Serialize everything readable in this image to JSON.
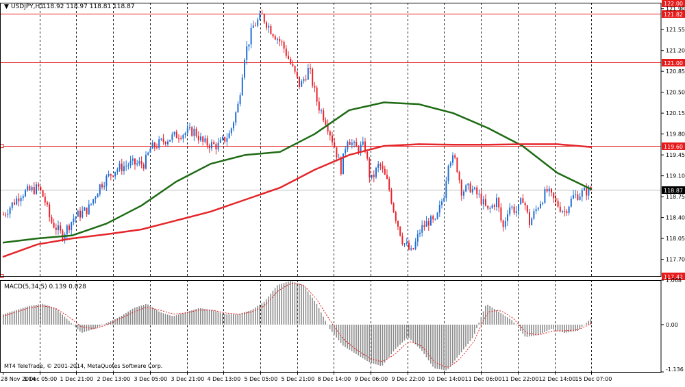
{
  "window": {
    "symbol_title": "USDJPY,H1",
    "ohlc_text": "118.92 118.97 118.81 118.87",
    "watermark": "MT4 TeleTrade, © 2001-2014, MetaQuotes Software Corp."
  },
  "colors": {
    "bull_candle": "#1f6fd6",
    "bear_candle": "#e8222b",
    "ma_fast": "#1e6b14",
    "ma_slow": "#e4262b",
    "level_line": "#e61c1c",
    "grid": "#222222",
    "macd_hist": "#8a8a8a",
    "macd_signal": "#e61c1c",
    "border": "#000000"
  },
  "chart_data": [
    {
      "type": "candlestick",
      "symbol": "USDJPY",
      "timeframe": "H1",
      "ylim": [
        117.42,
        122.0
      ],
      "yticks": [
        "121.90",
        "121.55",
        "121.20",
        "120.85",
        "120.50",
        "120.15",
        "119.80",
        "119.45",
        "119.10",
        "118.75",
        "118.40",
        "118.05",
        "117.70"
      ],
      "xticks": [
        "28 Nov 2014",
        "1 Dec 05:00",
        "1 Dec 21:00",
        "2 Dec 13:00",
        "3 Dec 05:00",
        "3 Dec 21:00",
        "4 Dec 13:00",
        "5 Dec 05:00",
        "5 Dec 21:00",
        "8 Dec 14:00",
        "9 Dec 06:00",
        "9 Dec 22:00",
        "10 Dec 14:00",
        "11 Dec 06:00",
        "11 Dec 22:00",
        "12 Dec 14:00",
        "15 Dec 07:00"
      ],
      "horizontal_levels": [
        {
          "price": 122.0,
          "label": "122.00"
        },
        {
          "price": 121.82,
          "label": "121.82"
        },
        {
          "price": 121.0,
          "label": "121.00"
        },
        {
          "price": 119.6,
          "label": "119.60"
        },
        {
          "price": 117.42,
          "label": "117.42"
        }
      ],
      "current_price": {
        "price": 118.87,
        "label": "118.87"
      },
      "close_path": [
        [
          0,
          118.45
        ],
        [
          0.03,
          118.8
        ],
        [
          0.06,
          118.9
        ],
        [
          0.07,
          118.7
        ],
        [
          0.08,
          118.35
        ],
        [
          0.1,
          118.1
        ],
        [
          0.12,
          118.4
        ],
        [
          0.145,
          118.55
        ],
        [
          0.165,
          118.95
        ],
        [
          0.19,
          119.2
        ],
        [
          0.215,
          119.3
        ],
        [
          0.24,
          119.3
        ],
        [
          0.25,
          119.55
        ],
        [
          0.275,
          119.7
        ],
        [
          0.3,
          119.8
        ],
        [
          0.325,
          119.85
        ],
        [
          0.34,
          119.65
        ],
        [
          0.365,
          119.6
        ],
        [
          0.385,
          119.8
        ],
        [
          0.4,
          120.3
        ],
        [
          0.41,
          121.1
        ],
        [
          0.425,
          121.6
        ],
        [
          0.44,
          121.78
        ],
        [
          0.455,
          121.55
        ],
        [
          0.475,
          121.3
        ],
        [
          0.49,
          120.95
        ],
        [
          0.505,
          120.6
        ],
        [
          0.52,
          120.9
        ],
        [
          0.535,
          120.3
        ],
        [
          0.55,
          120.0
        ],
        [
          0.565,
          119.55
        ],
        [
          0.575,
          119.2
        ],
        [
          0.585,
          119.75
        ],
        [
          0.6,
          119.55
        ],
        [
          0.615,
          119.6
        ],
        [
          0.625,
          119.0
        ],
        [
          0.64,
          119.3
        ],
        [
          0.655,
          118.95
        ],
        [
          0.665,
          118.5
        ],
        [
          0.68,
          118.0
        ],
        [
          0.695,
          117.8
        ],
        [
          0.71,
          118.2
        ],
        [
          0.725,
          118.35
        ],
        [
          0.735,
          118.3
        ],
        [
          0.75,
          118.8
        ],
        [
          0.758,
          119.4
        ],
        [
          0.77,
          119.35
        ],
        [
          0.78,
          118.85
        ],
        [
          0.795,
          118.9
        ],
        [
          0.81,
          118.75
        ],
        [
          0.825,
          118.5
        ],
        [
          0.84,
          118.7
        ],
        [
          0.85,
          118.2
        ],
        [
          0.86,
          118.6
        ],
        [
          0.875,
          118.5
        ],
        [
          0.885,
          118.75
        ],
        [
          0.895,
          118.3
        ],
        [
          0.91,
          118.6
        ],
        [
          0.925,
          118.85
        ],
        [
          0.94,
          118.65
        ],
        [
          0.955,
          118.5
        ],
        [
          0.97,
          118.75
        ],
        [
          1,
          118.87
        ]
      ],
      "series": [
        {
          "name": "",
          "values": [
            117.98,
            118.05,
            118.1,
            118.3,
            118.6,
            119.0,
            119.3,
            119.45,
            119.5,
            119.8,
            120.2,
            120.33,
            120.3,
            120.15,
            119.9,
            119.6,
            119.15,
            118.87
          ]
        },
        {
          "name": "",
          "values": [
            117.74,
            117.95,
            118.05,
            118.12,
            118.2,
            118.35,
            118.5,
            118.7,
            118.9,
            119.2,
            119.45,
            119.6,
            119.63,
            119.62,
            119.62,
            119.63,
            119.63,
            119.58
          ]
        }
      ]
    },
    {
      "type": "bar",
      "title": "MACD(5,34,5) 0.139 0.028",
      "ylim": [
        -1.136,
        1.068
      ],
      "yticks": [
        "1.068",
        "0.00",
        "-1.136"
      ],
      "values": [
        0.25,
        0.35,
        0.45,
        0.5,
        0.4,
        0.1,
        -0.2,
        -0.1,
        0.05,
        0.2,
        0.4,
        0.5,
        0.3,
        0.2,
        0.3,
        0.4,
        0.35,
        0.25,
        0.25,
        0.35,
        0.55,
        0.95,
        1.05,
        0.95,
        0.5,
        -0.1,
        -0.5,
        -0.7,
        -0.9,
        -1.0,
        -0.6,
        -0.3,
        -0.6,
        -1.05,
        -1.1,
        -0.7,
        -0.3,
        0.5,
        0.3,
        0.1,
        -0.3,
        -0.25,
        -0.1,
        -0.2,
        -0.15,
        0.14
      ],
      "series": [
        {
          "name": "",
          "values": [
            0.2,
            0.3,
            0.4,
            0.45,
            0.4,
            0.2,
            -0.05,
            -0.1,
            0.0,
            0.15,
            0.3,
            0.42,
            0.35,
            0.25,
            0.28,
            0.35,
            0.35,
            0.28,
            0.25,
            0.3,
            0.45,
            0.8,
            1.0,
            0.95,
            0.6,
            0.1,
            -0.35,
            -0.6,
            -0.8,
            -0.9,
            -0.7,
            -0.4,
            -0.5,
            -0.9,
            -1.05,
            -0.8,
            -0.4,
            0.3,
            0.35,
            0.15,
            -0.2,
            -0.25,
            -0.15,
            -0.15,
            -0.12,
            0.03
          ]
        }
      ]
    }
  ]
}
